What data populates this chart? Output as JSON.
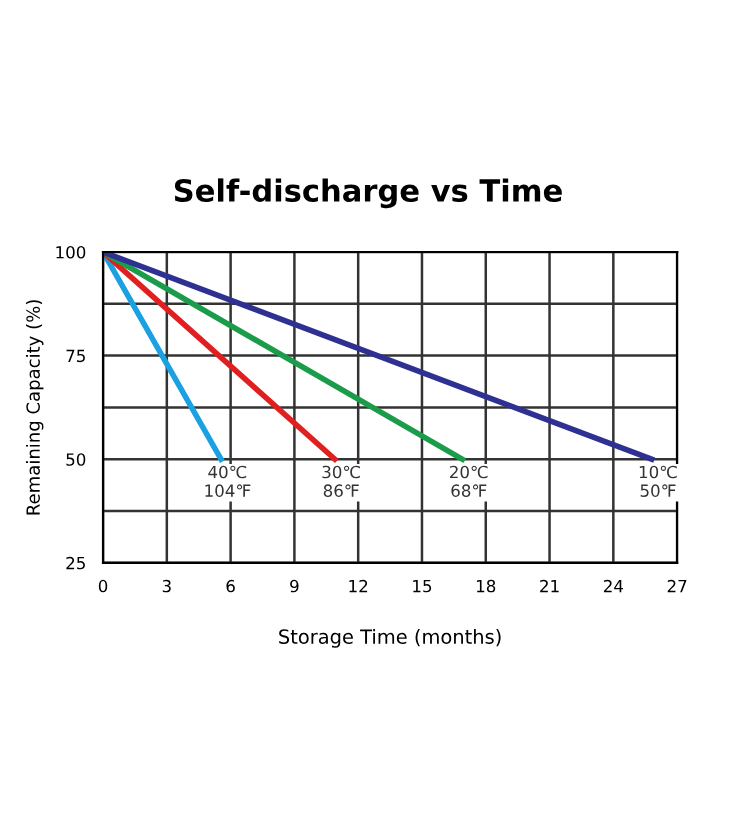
{
  "chart_data": {
    "type": "line",
    "title": "Self-discharge vs Time",
    "xlabel": "Storage Time (months)",
    "ylabel": "Remaining Capacity (%)",
    "xlim": [
      0,
      27
    ],
    "xticks": [
      0,
      3,
      6,
      9,
      12,
      15,
      18,
      21,
      24,
      27
    ],
    "ylim": [
      25,
      100
    ],
    "yticks": [
      25,
      {
        "value": 37.5,
        "label": null
      },
      50,
      {
        "value": 62.5,
        "label": null
      },
      75,
      {
        "value": 87.5,
        "label": null
      },
      100
    ],
    "grid": true,
    "legend": false,
    "marker": "none",
    "line_style": "solid",
    "series": [
      {
        "name": "40℃\n104℉",
        "color": "#1ba1e2",
        "x": [
          0,
          5.55
        ],
        "values": [
          100,
          50
        ]
      },
      {
        "name": "30℃\n86℉",
        "color": "#e02020",
        "x": [
          0,
          10.9
        ],
        "values": [
          100,
          50
        ]
      },
      {
        "name": "20℃\n68℉",
        "color": "#1a9c4a",
        "x": [
          0,
          16.9
        ],
        "values": [
          100,
          50
        ]
      },
      {
        "name": "10℃\n50℉",
        "color": "#2e3192",
        "x": [
          0,
          25.8
        ],
        "values": [
          100,
          50
        ]
      }
    ]
  }
}
